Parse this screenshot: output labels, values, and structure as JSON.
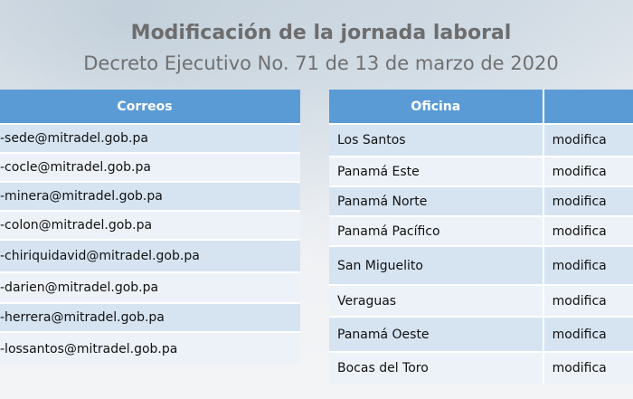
{
  "header": {
    "title": "Modificación de la jornada laboral",
    "subtitle": "Decreto Ejecutivo No. 71 de 13 de marzo de 2020"
  },
  "correos_table": {
    "header": "Correos",
    "rows": [
      "-sede@mitradel.gob.pa",
      "-cocle@mitradel.gob.pa",
      "-minera@mitradel.gob.pa",
      "-colon@mitradel.gob.pa",
      "-chiriquidavid@mitradel.gob.pa",
      "-darien@mitradel.gob.pa",
      "-herrera@mitradel.gob.pa",
      "-lossantos@mitradel.gob.pa"
    ]
  },
  "oficina_table": {
    "headers": [
      "Oficina",
      ""
    ],
    "rows": [
      {
        "oficina": "Los Santos",
        "value": "modifica"
      },
      {
        "oficina": "Panamá Este",
        "value": "modifica"
      },
      {
        "oficina": "Panamá Norte",
        "value": "modifica"
      },
      {
        "oficina": "Panamá Pacífico",
        "value": "modifica"
      },
      {
        "oficina": "San Miguelito",
        "value": "modifica"
      },
      {
        "oficina": "Veraguas",
        "value": "modifica"
      },
      {
        "oficina": "Panamá Oeste",
        "value": "modifica"
      },
      {
        "oficina": "Bocas del Toro",
        "value": "modifica"
      }
    ]
  }
}
